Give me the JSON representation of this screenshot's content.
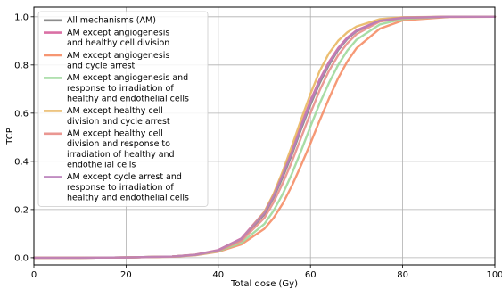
{
  "chart_data": {
    "type": "line",
    "title": "",
    "xlabel": "Total dose (Gy)",
    "ylabel": "TCP",
    "xlim": [
      0,
      100
    ],
    "ylim": [
      -0.03,
      1.04
    ],
    "xticks": [
      0,
      20,
      40,
      60,
      80,
      100
    ],
    "yticks": [
      0.0,
      0.2,
      0.4,
      0.6,
      0.8,
      1.0
    ],
    "xtick_labels": [
      "0",
      "20",
      "40",
      "60",
      "80",
      "100"
    ],
    "ytick_labels": [
      "0.0",
      "0.2",
      "0.4",
      "0.6",
      "0.8",
      "1.0"
    ],
    "grid": true,
    "legend_position": "upper-left",
    "series": [
      {
        "name": "All mechanisms (AM)",
        "legend_lines": [
          "All mechanisms (AM)"
        ],
        "color": "#7f7f7f",
        "x": [
          0,
          10,
          20,
          30,
          35,
          40,
          45,
          50,
          52,
          54,
          56,
          58,
          60,
          62,
          64,
          66,
          68,
          70,
          75,
          80,
          90,
          100
        ],
        "y": [
          0.0,
          0.0,
          0.001,
          0.005,
          0.012,
          0.03,
          0.075,
          0.18,
          0.25,
          0.335,
          0.43,
          0.535,
          0.635,
          0.725,
          0.8,
          0.862,
          0.908,
          0.94,
          0.983,
          0.996,
          1.0,
          1.0
        ]
      },
      {
        "name": "AM except angiogenesis and healthy cell division",
        "legend_lines": [
          "AM except angiogenesis",
          "and healthy cell division"
        ],
        "color": "#d6619b",
        "x": [
          0,
          10,
          20,
          30,
          35,
          40,
          45,
          50,
          52,
          54,
          56,
          58,
          60,
          62,
          64,
          66,
          68,
          70,
          75,
          80,
          90,
          100
        ],
        "y": [
          0.0,
          0.0,
          0.001,
          0.005,
          0.013,
          0.032,
          0.08,
          0.19,
          0.262,
          0.35,
          0.448,
          0.552,
          0.652,
          0.74,
          0.812,
          0.87,
          0.914,
          0.944,
          0.985,
          0.997,
          1.0,
          1.0
        ]
      },
      {
        "name": "AM except angiogenesis and cycle arrest",
        "legend_lines": [
          "AM except angiogenesis",
          "and cycle arrest"
        ],
        "color": "#f58b63",
        "x": [
          0,
          10,
          20,
          30,
          35,
          40,
          45,
          50,
          52,
          54,
          56,
          58,
          60,
          62,
          64,
          66,
          68,
          70,
          75,
          80,
          90,
          100
        ],
        "y": [
          0.0,
          0.0,
          0.001,
          0.004,
          0.01,
          0.025,
          0.055,
          0.12,
          0.165,
          0.225,
          0.3,
          0.385,
          0.475,
          0.57,
          0.66,
          0.745,
          0.815,
          0.87,
          0.95,
          0.985,
          0.999,
          1.0
        ]
      },
      {
        "name": "AM except angiogenesis and response to irradiation of healthy and endothelial cells",
        "legend_lines": [
          "AM except angiogenesis and",
          "response to irradiation of",
          "healthy and endothelial cells"
        ],
        "color": "#9cd89a",
        "x": [
          0,
          10,
          20,
          30,
          35,
          40,
          45,
          50,
          52,
          54,
          56,
          58,
          60,
          62,
          64,
          66,
          68,
          70,
          75,
          80,
          90,
          100
        ],
        "y": [
          0.0,
          0.0,
          0.001,
          0.005,
          0.011,
          0.027,
          0.062,
          0.14,
          0.195,
          0.265,
          0.35,
          0.445,
          0.545,
          0.64,
          0.725,
          0.8,
          0.86,
          0.905,
          0.968,
          0.991,
          1.0,
          1.0
        ]
      },
      {
        "name": "AM except healthy cell division and cycle arrest",
        "legend_lines": [
          "AM except healthy cell",
          "division and cycle arrest"
        ],
        "color": "#e8b55f",
        "x": [
          0,
          10,
          20,
          30,
          35,
          40,
          45,
          50,
          52,
          54,
          56,
          58,
          60,
          62,
          64,
          66,
          68,
          70,
          75,
          80,
          90,
          100
        ],
        "y": [
          0.0,
          0.0,
          0.001,
          0.005,
          0.012,
          0.03,
          0.075,
          0.19,
          0.265,
          0.36,
          0.465,
          0.575,
          0.68,
          0.775,
          0.848,
          0.9,
          0.936,
          0.96,
          0.99,
          0.998,
          1.0,
          1.0
        ]
      },
      {
        "name": "AM except healthy cell division and response to irradiation of healthy and endothelial cells",
        "legend_lines": [
          "AM except healthy cell",
          "division and response to",
          "irradiation of healthy and",
          "endothelial cells"
        ],
        "color": "#e88c86",
        "x": [
          0,
          10,
          20,
          30,
          35,
          40,
          45,
          50,
          52,
          54,
          56,
          58,
          60,
          62,
          64,
          66,
          68,
          70,
          75,
          80,
          90,
          100
        ],
        "y": [
          0.0,
          0.0,
          0.001,
          0.005,
          0.012,
          0.029,
          0.07,
          0.165,
          0.23,
          0.31,
          0.4,
          0.5,
          0.6,
          0.695,
          0.775,
          0.84,
          0.89,
          0.928,
          0.98,
          0.995,
          1.0,
          1.0
        ]
      },
      {
        "name": "AM except cycle arrest and response to irradiation of healthy and endothelial cells",
        "legend_lines": [
          "AM except cycle arrest and",
          "response to irradiation of",
          "healthy and endothelial cells"
        ],
        "color": "#b97fba",
        "x": [
          0,
          10,
          20,
          30,
          35,
          40,
          45,
          50,
          52,
          54,
          56,
          58,
          60,
          62,
          64,
          66,
          68,
          70,
          75,
          80,
          90,
          100
        ],
        "y": [
          0.0,
          0.0,
          0.001,
          0.005,
          0.012,
          0.031,
          0.078,
          0.185,
          0.255,
          0.345,
          0.44,
          0.545,
          0.645,
          0.735,
          0.807,
          0.866,
          0.911,
          0.942,
          0.984,
          0.996,
          1.0,
          1.0
        ]
      }
    ]
  }
}
